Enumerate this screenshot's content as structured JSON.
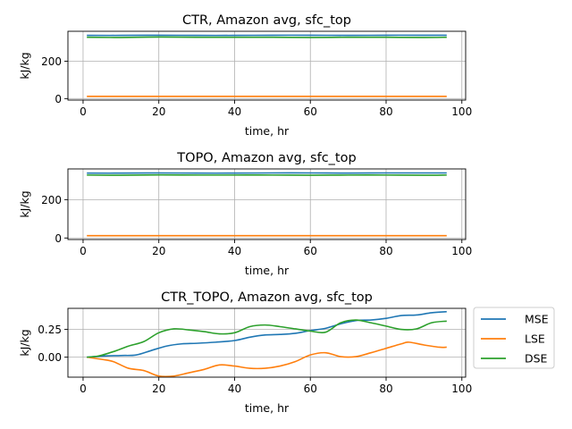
{
  "chart_data": [
    {
      "type": "line",
      "title": "CTR, Amazon avg, sfc_top",
      "xlabel": "time, hr",
      "ylabel": "kJ/kg",
      "xlim": [
        -4,
        101
      ],
      "ylim": [
        -8,
        360
      ],
      "xticks": [
        0,
        20,
        40,
        60,
        80,
        100
      ],
      "yticks": [
        0,
        200
      ],
      "grid": true,
      "x": [
        1,
        96
      ],
      "series": [
        {
          "name": "MSE",
          "color": "#1f77b4",
          "x": [
            1,
            10,
            20,
            30,
            40,
            50,
            60,
            70,
            80,
            90,
            96
          ],
          "values": [
            338,
            338,
            339,
            338,
            338,
            339,
            339,
            338,
            339,
            339,
            339
          ]
        },
        {
          "name": "LSE",
          "color": "#ff7f0e",
          "x": [
            1,
            20,
            40,
            60,
            80,
            96
          ],
          "values": [
            12,
            12,
            12,
            12,
            12,
            12
          ]
        },
        {
          "name": "DSE",
          "color": "#2ca02c",
          "x": [
            1,
            10,
            20,
            30,
            40,
            50,
            60,
            70,
            80,
            90,
            96
          ],
          "values": [
            328,
            327,
            329,
            328,
            328,
            328,
            327,
            328,
            328,
            327,
            328
          ]
        }
      ]
    },
    {
      "type": "line",
      "title": "TOPO, Amazon avg, sfc_top",
      "xlabel": "time, hr",
      "ylabel": "kJ/kg",
      "xlim": [
        -4,
        101
      ],
      "ylim": [
        -8,
        360
      ],
      "xticks": [
        0,
        20,
        40,
        60,
        80,
        100
      ],
      "yticks": [
        0,
        200
      ],
      "grid": true,
      "series": [
        {
          "name": "MSE",
          "color": "#1f77b4",
          "x": [
            1,
            10,
            20,
            30,
            40,
            50,
            60,
            70,
            80,
            90,
            96
          ],
          "values": [
            338,
            338,
            339,
            338,
            338,
            339,
            339,
            338,
            339,
            339,
            339
          ]
        },
        {
          "name": "LSE",
          "color": "#ff7f0e",
          "x": [
            1,
            20,
            40,
            60,
            80,
            96
          ],
          "values": [
            12,
            12,
            12,
            12,
            12,
            12
          ]
        },
        {
          "name": "DSE",
          "color": "#2ca02c",
          "x": [
            1,
            10,
            20,
            30,
            40,
            50,
            60,
            70,
            80,
            90,
            96
          ],
          "values": [
            328,
            327,
            329,
            328,
            328,
            328,
            327,
            328,
            328,
            327,
            328
          ]
        }
      ]
    },
    {
      "type": "line",
      "title": "CTR_TOPO, Amazon avg, sfc_top",
      "xlabel": "time, hr",
      "ylabel": "kJ/kg",
      "xlim": [
        -4,
        101
      ],
      "ylim": [
        -0.18,
        0.44
      ],
      "xticks": [
        0,
        20,
        40,
        60,
        80,
        100
      ],
      "yticks": [
        0.0,
        0.25
      ],
      "ytick_labels": [
        "0.00",
        "0.25"
      ],
      "grid": true,
      "legend": "outside-right",
      "series": [
        {
          "name": "MSE",
          "color": "#1f77b4",
          "x": [
            1,
            5,
            10,
            14,
            18,
            22,
            26,
            30,
            35,
            40,
            44,
            48,
            52,
            56,
            60,
            64,
            68,
            72,
            76,
            80,
            84,
            88,
            92,
            96
          ],
          "values": [
            0.0,
            0.01,
            0.015,
            0.02,
            0.06,
            0.1,
            0.12,
            0.125,
            0.135,
            0.15,
            0.18,
            0.2,
            0.205,
            0.215,
            0.24,
            0.26,
            0.3,
            0.33,
            0.335,
            0.35,
            0.375,
            0.38,
            0.4,
            0.41
          ]
        },
        {
          "name": "LSE",
          "color": "#ff7f0e",
          "x": [
            1,
            5,
            8,
            12,
            16,
            20,
            24,
            28,
            32,
            36,
            40,
            44,
            48,
            52,
            56,
            60,
            64,
            68,
            72,
            76,
            80,
            84,
            86,
            90,
            94,
            96
          ],
          "values": [
            0.0,
            -0.02,
            -0.04,
            -0.1,
            -0.12,
            -0.17,
            -0.17,
            -0.14,
            -0.11,
            -0.07,
            -0.08,
            -0.1,
            -0.1,
            -0.08,
            -0.04,
            0.02,
            0.04,
            0.005,
            0.005,
            0.04,
            0.08,
            0.12,
            0.135,
            0.11,
            0.09,
            0.09
          ]
        },
        {
          "name": "DSE",
          "color": "#2ca02c",
          "x": [
            1,
            4,
            8,
            12,
            16,
            20,
            24,
            28,
            32,
            36,
            40,
            44,
            48,
            52,
            56,
            60,
            64,
            68,
            72,
            76,
            80,
            84,
            88,
            92,
            96
          ],
          "values": [
            0.0,
            0.01,
            0.05,
            0.1,
            0.14,
            0.22,
            0.255,
            0.245,
            0.23,
            0.21,
            0.22,
            0.275,
            0.29,
            0.275,
            0.255,
            0.235,
            0.225,
            0.31,
            0.335,
            0.31,
            0.28,
            0.25,
            0.255,
            0.31,
            0.325
          ]
        }
      ]
    }
  ]
}
